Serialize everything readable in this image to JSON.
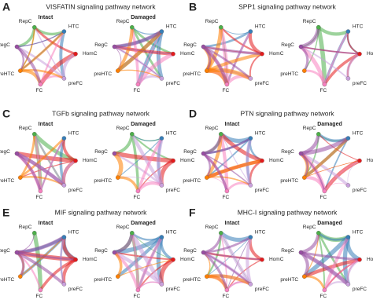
{
  "cell_types": [
    {
      "name": "RepC",
      "color": "#4daf4a"
    },
    {
      "name": "HTC",
      "color": "#377eb8"
    },
    {
      "name": "HomC",
      "color": "#e41a1c"
    },
    {
      "name": "preFC",
      "color": "#c9a0dc"
    },
    {
      "name": "FC",
      "color": "#f781bf"
    },
    {
      "name": "preHTC",
      "color": "#ff7f00"
    },
    {
      "name": "RegC",
      "color": "#984ea3"
    }
  ],
  "panels": [
    {
      "letter": "A",
      "title": "VISFATIN signaling pathway network",
      "conditions": [
        "Intact",
        "Damaged"
      ]
    },
    {
      "letter": "B",
      "title": "SPP1 signaling pathway network",
      "conditions": []
    },
    {
      "letter": "C",
      "title": "TGFb signaling pathway network",
      "conditions": [
        "Intact",
        "Damaged"
      ]
    },
    {
      "letter": "D",
      "title": "PTN signaling pathway network",
      "conditions": [
        "Intact",
        "Damaged"
      ]
    },
    {
      "letter": "E",
      "title": "MIF signaling pathway network",
      "conditions": [
        "Intact",
        "Damaged"
      ]
    },
    {
      "letter": "F",
      "title": "MHC-I signaling pathway network",
      "conditions": [
        "Intact",
        "Damaged"
      ]
    }
  ]
}
